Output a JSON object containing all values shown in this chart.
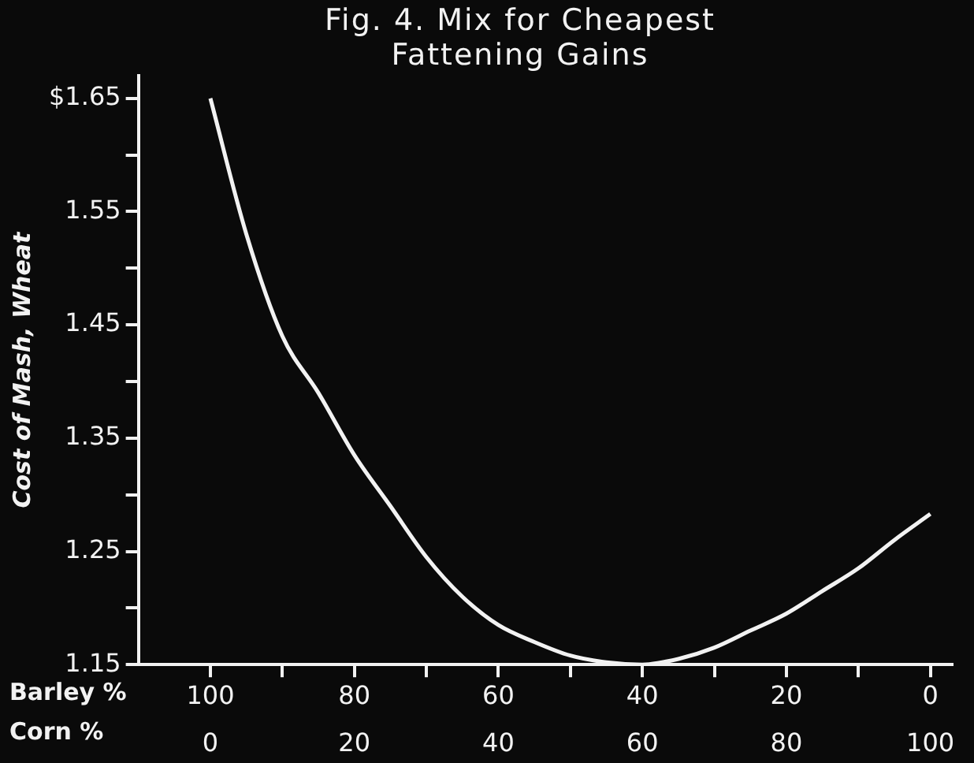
{
  "chart_data": {
    "type": "line",
    "title": "Fig. 4. Mix for Cheapest Fattening Gains",
    "ylabel": "Cost of Mash, Wheat",
    "xlabel": "Barley %",
    "x2label": "Corn %",
    "xlim": [
      110,
      -3
    ],
    "xticks": [
      100,
      {
        "value": 90,
        "label": null
      },
      80,
      {
        "value": 70,
        "label": null
      },
      60,
      {
        "value": 50,
        "label": null
      },
      40,
      {
        "value": 30,
        "label": null
      },
      20,
      {
        "value": 10,
        "label": null
      },
      0
    ],
    "x2lim": [
      -10,
      103
    ],
    "x2ticks": [
      0,
      20,
      40,
      60,
      80,
      100
    ],
    "ylim": [
      1.15,
      1.67
    ],
    "yticks": [
      1.15,
      {
        "value": 1.2,
        "label": null
      },
      1.25,
      {
        "value": 1.3,
        "label": null
      },
      1.35,
      {
        "value": 1.4,
        "label": null
      },
      1.45,
      {
        "value": 1.5,
        "label": null
      },
      1.55,
      {
        "value": 1.6,
        "label": null
      },
      {
        "value": 1.65,
        "label": "$1.65"
      }
    ],
    "x": [
      100,
      95,
      90,
      85,
      80,
      75,
      70,
      65,
      60,
      55,
      50,
      45,
      40,
      35,
      30,
      25,
      20,
      15,
      10,
      5,
      0
    ],
    "series": [
      {
        "color": "#f2f2f2",
        "values": [
          1.65,
          1.53,
          1.44,
          1.39,
          1.335,
          1.29,
          1.245,
          1.21,
          1.185,
          1.17,
          1.158,
          1.152,
          1.15,
          1.155,
          1.165,
          1.18,
          1.195,
          1.215,
          1.235,
          1.26,
          1.283
        ]
      }
    ],
    "grid": false,
    "legend": false,
    "marker": "none",
    "line_style": "solid"
  }
}
